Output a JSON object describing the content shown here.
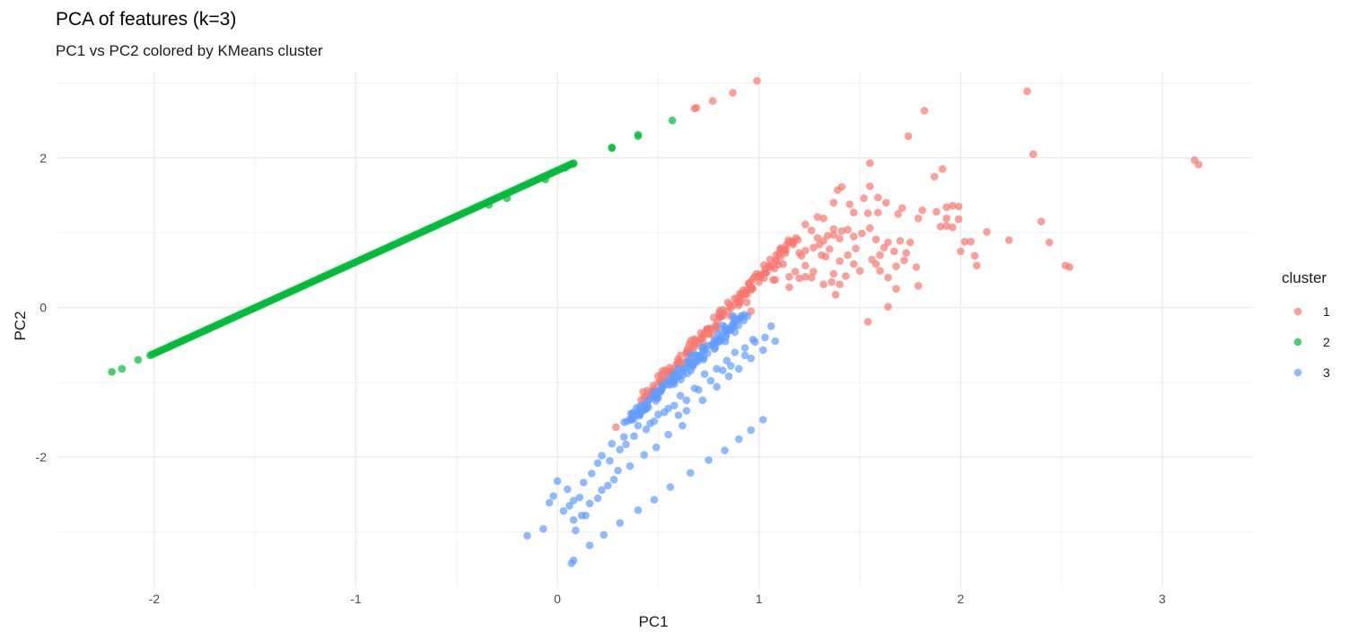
{
  "chart_data": {
    "type": "scatter",
    "title": "PCA of features (k=3)",
    "subtitle": "PC1 vs PC2 colored by KMeans cluster",
    "xlabel": "PC1",
    "ylabel": "PC2",
    "xlim": [
      -2.48,
      3.45
    ],
    "ylim": [
      -3.75,
      3.15
    ],
    "x_ticks": [
      -2,
      -1,
      0,
      1,
      2,
      3
    ],
    "y_ticks": [
      -2,
      0,
      2
    ],
    "x_tick_labels": [
      "-2",
      "-1",
      "0",
      "1",
      "2",
      "3"
    ],
    "y_tick_labels": [
      "-2",
      "0",
      "2"
    ],
    "grid": true,
    "legend": {
      "title": "cluster",
      "position": "right",
      "entries": [
        {
          "label": "1",
          "color": "#F8766D"
        },
        {
          "label": "2",
          "color": "#00BA38"
        },
        {
          "label": "3",
          "color": "#619CFF"
        }
      ]
    },
    "series": [
      {
        "name": "1",
        "color": "#F8766D",
        "points": [
          [
            0.99,
            3.03
          ],
          [
            0.87,
            2.87
          ],
          [
            0.77,
            2.76
          ],
          [
            0.68,
            2.66
          ],
          [
            0.69,
            2.67
          ],
          [
            2.33,
            2.89
          ],
          [
            1.82,
            2.63
          ],
          [
            1.74,
            2.29
          ],
          [
            2.36,
            2.05
          ],
          [
            1.55,
            1.93
          ],
          [
            3.16,
            1.97
          ],
          [
            3.18,
            1.91
          ],
          [
            1.91,
            1.85
          ],
          [
            1.87,
            1.75
          ],
          [
            1.41,
            1.61
          ],
          [
            1.39,
            1.57
          ],
          [
            1.55,
            1.62
          ],
          [
            1.59,
            1.47
          ],
          [
            1.52,
            1.46
          ],
          [
            1.37,
            1.4
          ],
          [
            1.45,
            1.38
          ],
          [
            1.63,
            1.4
          ],
          [
            1.71,
            1.33
          ],
          [
            1.81,
            1.3
          ],
          [
            1.47,
            1.27
          ],
          [
            1.59,
            1.27
          ],
          [
            1.54,
            1.26
          ],
          [
            1.69,
            1.25
          ],
          [
            1.88,
            1.28
          ],
          [
            1.96,
            1.36
          ],
          [
            1.93,
            1.34
          ],
          [
            1.99,
            1.35
          ],
          [
            1.79,
            1.19
          ],
          [
            1.93,
            1.19
          ],
          [
            1.99,
            1.18
          ],
          [
            1.9,
            1.08
          ],
          [
            1.93,
            1.09
          ],
          [
            1.96,
            1.07
          ],
          [
            2.4,
            1.15
          ],
          [
            2.13,
            1.01
          ],
          [
            2.02,
            0.88
          ],
          [
            2.05,
            0.88
          ],
          [
            2.0,
            0.75
          ],
          [
            2.24,
            0.9
          ],
          [
            2.44,
            0.87
          ],
          [
            2.07,
            0.69
          ],
          [
            2.08,
            0.56
          ],
          [
            2.52,
            0.56
          ],
          [
            2.54,
            0.54
          ],
          [
            1.7,
            0.89
          ],
          [
            1.58,
            0.91
          ],
          [
            1.47,
            0.95
          ],
          [
            1.51,
            0.99
          ],
          [
            1.55,
            1.06
          ],
          [
            1.44,
            1.04
          ],
          [
            1.37,
            0.97
          ],
          [
            1.34,
            0.96
          ],
          [
            1.4,
            0.92
          ],
          [
            1.32,
            0.89
          ],
          [
            1.62,
            0.8
          ],
          [
            1.64,
            0.87
          ],
          [
            1.75,
            0.87
          ],
          [
            1.67,
            0.75
          ],
          [
            1.73,
            0.73
          ],
          [
            1.48,
            0.79
          ],
          [
            1.44,
            0.7
          ],
          [
            1.33,
            0.68
          ],
          [
            1.4,
            0.62
          ],
          [
            1.47,
            0.58
          ],
          [
            1.56,
            0.64
          ],
          [
            1.6,
            0.7
          ],
          [
            1.58,
            0.58
          ],
          [
            1.43,
            0.42
          ],
          [
            1.5,
            0.49
          ],
          [
            1.64,
            0.4
          ],
          [
            1.68,
            0.55
          ],
          [
            1.27,
            0.48
          ],
          [
            1.26,
            0.4
          ],
          [
            1.32,
            0.31
          ],
          [
            1.36,
            0.34
          ],
          [
            1.4,
            0.31
          ],
          [
            1.37,
            0.45
          ],
          [
            1.23,
            0.41
          ],
          [
            1.2,
            0.39
          ],
          [
            1.15,
            0.41
          ],
          [
            1.12,
            0.58
          ],
          [
            1.23,
            0.56
          ],
          [
            1.31,
            0.7
          ],
          [
            1.07,
            0.37
          ],
          [
            1.08,
            0.37
          ],
          [
            1.21,
            0.69
          ],
          [
            1.18,
            0.48
          ],
          [
            1.2,
            0.73
          ],
          [
            1.23,
            0.76
          ],
          [
            1.27,
            0.8
          ],
          [
            1.3,
            0.84
          ],
          [
            1.35,
            0.78
          ],
          [
            1.29,
            0.93
          ],
          [
            1.26,
            1.03
          ],
          [
            1.23,
            1.11
          ],
          [
            1.29,
            1.21
          ],
          [
            1.32,
            1.19
          ],
          [
            1.37,
            1.05
          ],
          [
            1.41,
            1.02
          ],
          [
            1.79,
            0.29
          ],
          [
            1.68,
            0.25
          ],
          [
            1.54,
            -0.19
          ],
          [
            1.64,
            0.01
          ],
          [
            1.38,
            0.17
          ],
          [
            1.15,
            0.27
          ],
          [
            1.6,
            0.49
          ],
          [
            1.72,
            0.63
          ],
          [
            1.78,
            0.54
          ],
          [
            0.96,
            -0.05
          ],
          [
            0.9,
            0.03
          ],
          [
            0.86,
            -0.12
          ],
          [
            0.94,
            0.07
          ],
          [
            0.29,
            -1.6
          ]
        ],
        "diagonal": {
          "from": [
            0.43,
            -1.22
          ],
          "to": [
            1.18,
            0.92
          ]
        }
      },
      {
        "name": "2",
        "color": "#00BA38",
        "points": [
          [
            -2.21,
            -0.86
          ],
          [
            -2.16,
            -0.82
          ],
          [
            -2.08,
            -0.7
          ],
          [
            -0.34,
            1.37
          ],
          [
            -0.25,
            1.46
          ],
          [
            -0.06,
            1.71
          ],
          [
            0.04,
            1.87
          ],
          [
            0.08,
            1.92
          ],
          [
            0.27,
            2.13
          ],
          [
            0.27,
            2.14
          ],
          [
            0.4,
            2.29
          ],
          [
            0.4,
            2.31
          ],
          [
            0.57,
            2.5
          ]
        ],
        "line": {
          "from": [
            -2.02,
            -0.64
          ],
          "to": [
            0.08,
            1.93
          ],
          "count": 250
        }
      },
      {
        "name": "3",
        "color": "#619CFF",
        "points": [
          [
            -0.15,
            -3.05
          ],
          [
            0.07,
            -3.42
          ],
          [
            0.08,
            -3.38
          ],
          [
            0.16,
            -3.18
          ],
          [
            0.23,
            -3.04
          ],
          [
            0.31,
            -2.88
          ],
          [
            0.4,
            -2.71
          ],
          [
            0.48,
            -2.57
          ],
          [
            0.56,
            -2.4
          ],
          [
            0.66,
            -2.21
          ],
          [
            0.75,
            -2.04
          ],
          [
            0.83,
            -1.91
          ],
          [
            0.9,
            -1.76
          ],
          [
            0.96,
            -1.64
          ],
          [
            1.02,
            -1.5
          ],
          [
            0.6,
            -1.44
          ],
          [
            0.64,
            -1.38
          ],
          [
            0.72,
            -1.24
          ],
          [
            0.79,
            -1.06
          ],
          [
            0.85,
            -0.92
          ],
          [
            0.9,
            -0.82
          ],
          [
            0.96,
            -0.68
          ],
          [
            1.02,
            -0.57
          ],
          [
            1.08,
            -0.45
          ],
          [
            -0.04,
            -2.61
          ],
          [
            0.03,
            -2.72
          ],
          [
            0.08,
            -2.84
          ],
          [
            0.06,
            -2.65
          ],
          [
            0.11,
            -2.54
          ],
          [
            0.13,
            -2.34
          ],
          [
            0.17,
            -2.22
          ],
          [
            0.2,
            -2.08
          ],
          [
            0.26,
            -2.05
          ],
          [
            0.31,
            -1.9
          ],
          [
            0.34,
            -1.83
          ],
          [
            0.38,
            -1.72
          ],
          [
            0.44,
            -1.63
          ],
          [
            0.48,
            -1.52
          ],
          [
            0.53,
            -1.4
          ],
          [
            0.58,
            -1.31
          ],
          [
            0.64,
            -1.24
          ],
          [
            0.7,
            -1.1
          ],
          [
            0.76,
            -0.98
          ],
          [
            0.82,
            -0.84
          ],
          [
            0.86,
            -0.78
          ],
          [
            0.93,
            -0.64
          ],
          [
            0.97,
            -0.43
          ],
          [
            1.06,
            -0.25
          ],
          [
            0.87,
            -0.11
          ],
          [
            0.82,
            -0.24
          ],
          [
            -0.07,
            -2.96
          ],
          [
            -0.02,
            -2.52
          ],
          [
            0.0,
            -2.32
          ],
          [
            0.05,
            -2.43
          ],
          [
            0.08,
            -2.58
          ],
          [
            0.14,
            -2.78
          ],
          [
            0.2,
            -2.55
          ],
          [
            0.25,
            -2.38
          ],
          [
            0.3,
            -2.18
          ],
          [
            0.22,
            -1.98
          ],
          [
            0.27,
            -1.82
          ],
          [
            0.33,
            -1.73
          ],
          [
            0.4,
            -1.58
          ],
          [
            0.46,
            -1.55
          ],
          [
            0.5,
            -1.43
          ],
          [
            0.55,
            -1.35
          ],
          [
            0.61,
            -1.18
          ],
          [
            0.68,
            -1.08
          ],
          [
            0.73,
            -0.89
          ],
          [
            0.79,
            -0.82
          ],
          [
            0.84,
            -0.71
          ],
          [
            0.88,
            -0.6
          ],
          [
            0.93,
            -0.54
          ],
          [
            0.98,
            -0.46
          ],
          [
            1.03,
            -0.4
          ],
          [
            0.62,
            -1.58
          ],
          [
            0.55,
            -1.7
          ],
          [
            0.49,
            -1.87
          ],
          [
            0.43,
            -1.97
          ],
          [
            0.36,
            -2.12
          ],
          [
            0.28,
            -2.3
          ],
          [
            0.22,
            -2.44
          ],
          [
            0.16,
            -2.62
          ],
          [
            0.12,
            -2.78
          ],
          [
            0.09,
            -2.98
          ]
        ],
        "diagonal": {
          "from": [
            0.35,
            -1.52
          ],
          "to": [
            0.93,
            -0.1
          ]
        }
      }
    ]
  }
}
